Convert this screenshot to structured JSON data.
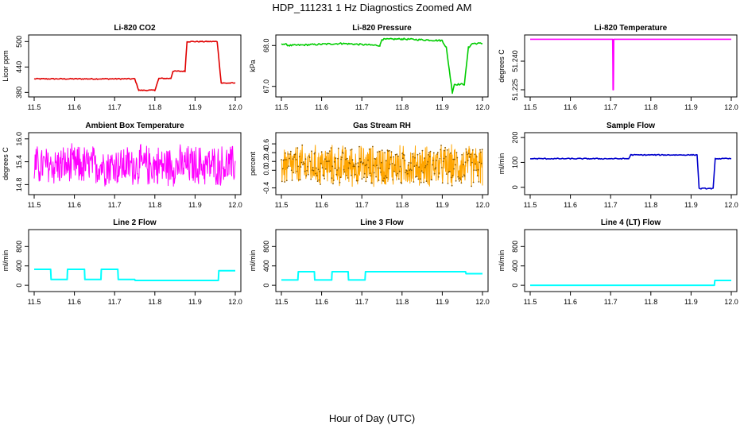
{
  "title": "HDP_111231  1 Hz Diagnostics Zoomed AM",
  "x_caption": "Hour of Day (UTC)",
  "chart_data": [
    {
      "type": "line",
      "title": "Li-820 CO2",
      "ylabel": "Licor ppm",
      "color": "#e00000",
      "xlim": [
        11.5,
        12.0
      ],
      "ylim": [
        375,
        510
      ],
      "x_ticks": [
        "11.5",
        "11.6",
        "11.7",
        "11.8",
        "11.9",
        "12.0"
      ],
      "y_ticks": [
        "380",
        "440",
        "500"
      ],
      "series": [
        {
          "kind": "steps",
          "noise": 1.2,
          "x": [
            11.5,
            11.75,
            11.76,
            11.8,
            11.81,
            11.84,
            11.845,
            11.875,
            11.88,
            11.955,
            11.965,
            12.0
          ],
          "y": [
            412,
            412,
            385,
            385,
            413,
            413,
            430,
            430,
            500,
            500,
            402,
            402
          ]
        }
      ]
    },
    {
      "type": "line",
      "title": "Li-820 Pressure",
      "ylabel": "kPa",
      "color": "#00cc00",
      "xlim": [
        11.5,
        12.0
      ],
      "ylim": [
        66.8,
        68.2
      ],
      "x_ticks": [
        "11.5",
        "11.6",
        "11.7",
        "11.8",
        "11.9",
        "12.0"
      ],
      "y_ticks": [
        "67.0",
        "68.0"
      ],
      "series": [
        {
          "kind": "steps",
          "noise": 0.02,
          "x": [
            11.5,
            11.52,
            11.65,
            11.745,
            11.75,
            11.8,
            11.9,
            11.91,
            11.925,
            11.93,
            11.955,
            11.965,
            11.975,
            12.0
          ],
          "y": [
            68.05,
            68.0,
            68.05,
            68.0,
            68.15,
            68.16,
            68.12,
            67.95,
            66.85,
            67.05,
            67.05,
            67.95,
            68.05,
            68.05
          ]
        }
      ]
    },
    {
      "type": "line",
      "title": "Li-820 Temperature",
      "ylabel": "degrees C",
      "color": "#ff00ff",
      "xlim": [
        11.5,
        12.0
      ],
      "ylim": [
        51.2225,
        51.2525
      ],
      "x_ticks": [
        "11.5",
        "11.6",
        "11.7",
        "11.8",
        "11.9",
        "12.0"
      ],
      "y_ticks": [
        "51.225",
        "51.240"
      ],
      "series": [
        {
          "kind": "steps",
          "noise": 0,
          "x": [
            11.5,
            11.705,
            11.706,
            11.707,
            11.708,
            12.0
          ],
          "y": [
            51.2515,
            51.2515,
            51.225,
            51.225,
            51.2515,
            51.2515
          ]
        }
      ]
    },
    {
      "type": "line",
      "title": "Ambient Box Temperature",
      "ylabel": "degrees C",
      "color": "#ff00ff",
      "xlim": [
        11.5,
        12.0
      ],
      "ylim": [
        14.6,
        16.1
      ],
      "x_ticks": [
        "11.5",
        "11.6",
        "11.7",
        "11.8",
        "11.9",
        "12.0"
      ],
      "y_ticks": [
        "14.8",
        "15.4",
        "16.0"
      ],
      "series": [
        {
          "kind": "noise",
          "base": 15.3,
          "spread": 0.75,
          "samples": 450
        }
      ]
    },
    {
      "type": "line",
      "title": "Gas Stream RH",
      "ylabel": "percent",
      "color": "#ffa500",
      "xlim": [
        11.5,
        12.0
      ],
      "ylim": [
        -0.5,
        0.8
      ],
      "x_ticks": [
        "11.5",
        "11.6",
        "11.7",
        "11.8",
        "11.9",
        "12.0"
      ],
      "y_ticks": [
        "-0.4",
        "0.0",
        "0.2",
        "0.4",
        "0.6"
      ],
      "series": [
        {
          "kind": "noise",
          "base": 0.1,
          "spread": 0.65,
          "samples": 600,
          "points": true
        }
      ]
    },
    {
      "type": "line",
      "title": "Sample Flow",
      "ylabel": "ml/min",
      "color": "#0000cc",
      "xlim": [
        11.5,
        12.0
      ],
      "ylim": [
        -20,
        210
      ],
      "x_ticks": [
        "11.5",
        "11.6",
        "11.7",
        "11.8",
        "11.9",
        "12.0"
      ],
      "y_ticks": [
        "0",
        "100",
        "200"
      ],
      "series": [
        {
          "kind": "steps",
          "noise": 2,
          "x": [
            11.5,
            11.745,
            11.75,
            11.915,
            11.92,
            11.955,
            11.96,
            12.0
          ],
          "y": [
            115,
            115,
            130,
            130,
            -5,
            -5,
            115,
            115
          ]
        }
      ]
    },
    {
      "type": "line",
      "title": "Line 2 Flow",
      "ylabel": "ml/min",
      "color": "#00ffff",
      "xlim": [
        11.5,
        12.0
      ],
      "ylim": [
        -80,
        1100
      ],
      "x_ticks": [
        "11.5",
        "11.6",
        "11.7",
        "11.8",
        "11.9",
        "12.0"
      ],
      "y_ticks": [
        "0",
        "400",
        "800"
      ],
      "series": [
        {
          "kind": "steps",
          "noise": 0,
          "x": [
            11.5,
            11.541,
            11.542,
            11.582,
            11.583,
            11.625,
            11.626,
            11.666,
            11.667,
            11.708,
            11.709,
            11.75,
            11.751,
            11.958,
            11.959,
            12.0
          ],
          "y": [
            330,
            330,
            120,
            120,
            330,
            330,
            120,
            120,
            330,
            330,
            120,
            120,
            100,
            100,
            300,
            300
          ]
        }
      ]
    },
    {
      "type": "line",
      "title": "Line 3 Flow",
      "ylabel": "ml/min",
      "color": "#00ffff",
      "xlim": [
        11.5,
        12.0
      ],
      "ylim": [
        -80,
        1100
      ],
      "x_ticks": [
        "11.5",
        "11.6",
        "11.7",
        "11.8",
        "11.9",
        "12.0"
      ],
      "y_ticks": [
        "0",
        "400",
        "800"
      ],
      "series": [
        {
          "kind": "steps",
          "noise": 0,
          "x": [
            11.5,
            11.541,
            11.542,
            11.582,
            11.583,
            11.625,
            11.626,
            11.666,
            11.667,
            11.708,
            11.709,
            11.958,
            11.959,
            12.0
          ],
          "y": [
            110,
            110,
            280,
            280,
            110,
            110,
            280,
            280,
            110,
            110,
            280,
            280,
            240,
            240
          ]
        }
      ]
    },
    {
      "type": "line",
      "title": "Line 4 (LT) Flow",
      "ylabel": "ml/min",
      "color": "#00ffff",
      "xlim": [
        11.5,
        12.0
      ],
      "ylim": [
        -80,
        1100
      ],
      "x_ticks": [
        "11.5",
        "11.6",
        "11.7",
        "11.8",
        "11.9",
        "12.0"
      ],
      "y_ticks": [
        "0",
        "400",
        "800"
      ],
      "series": [
        {
          "kind": "steps",
          "noise": 0,
          "x": [
            11.5,
            11.958,
            11.959,
            12.0
          ],
          "y": [
            0,
            0,
            100,
            100
          ]
        }
      ]
    }
  ]
}
